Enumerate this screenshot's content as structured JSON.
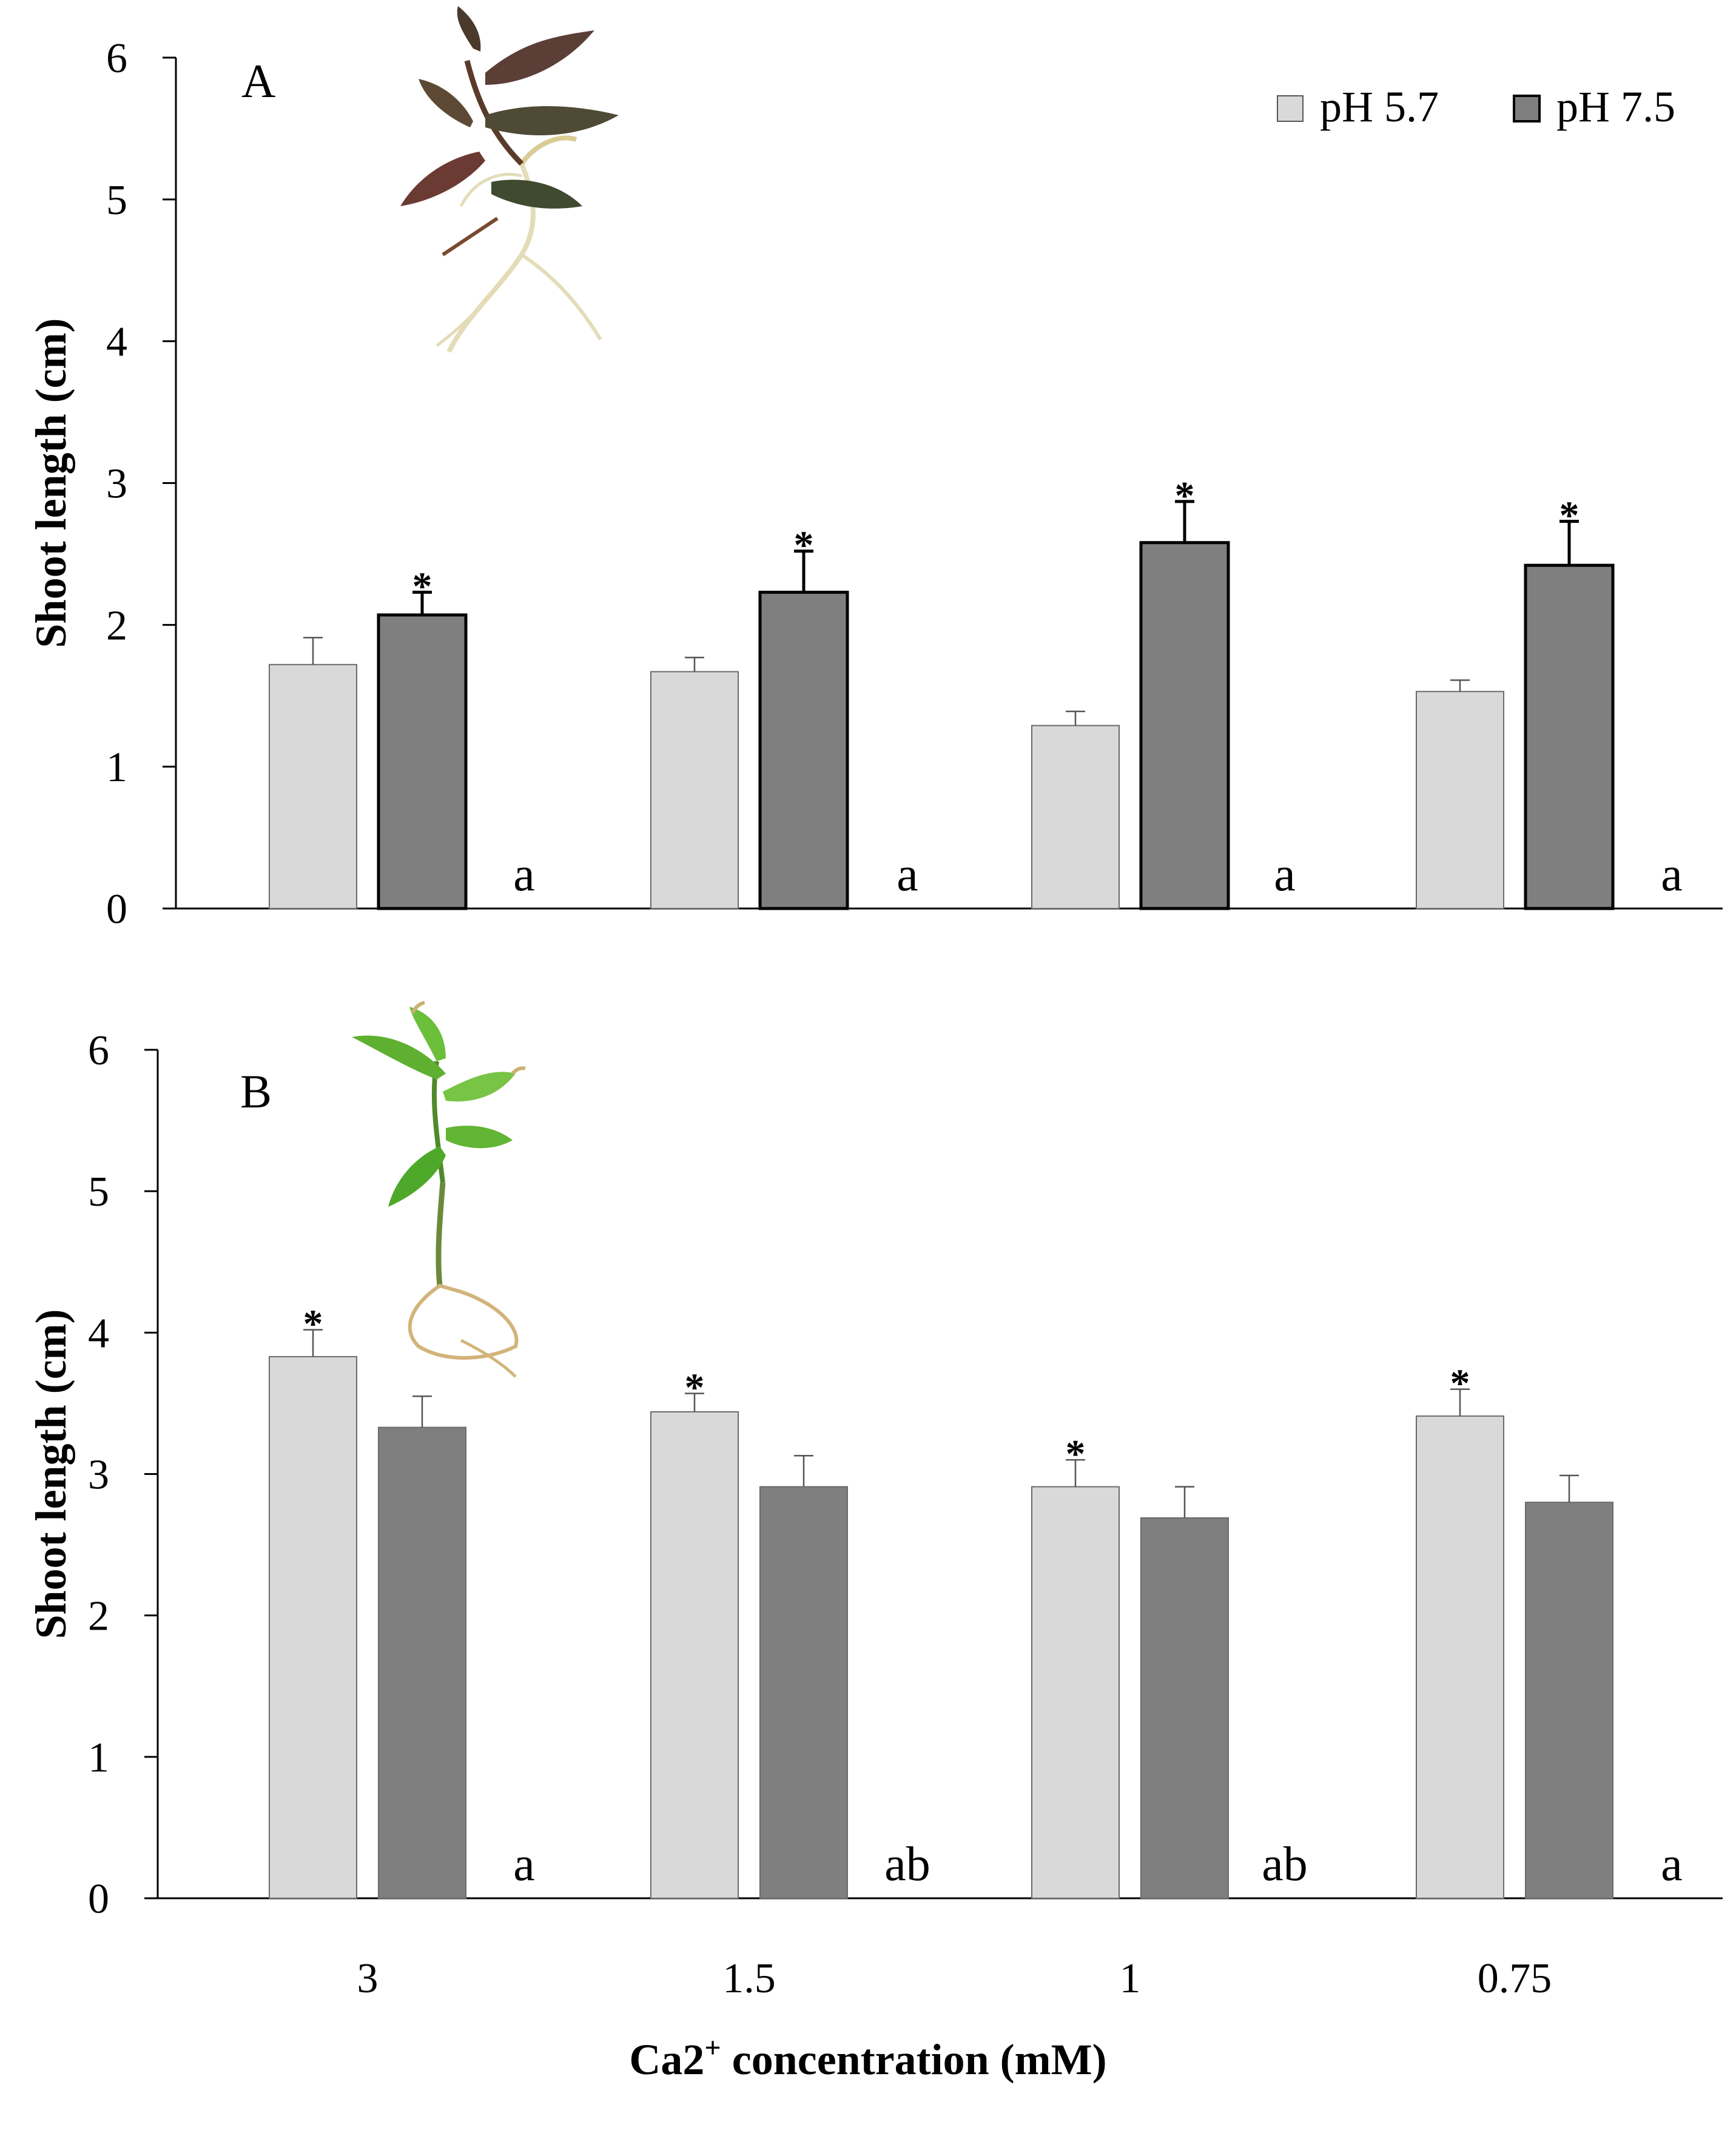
{
  "figure": {
    "xlabel": "Ca2",
    "xlabel_sup": "+",
    "xlabel_rest": " concentration (mM)",
    "legend": [
      {
        "label": "pH 5.7",
        "color": "#d9d9d9"
      },
      {
        "label": "pH 7.5",
        "color": "#7f7f7f"
      }
    ]
  },
  "chart_data": [
    {
      "type": "bar",
      "panel": "A",
      "title": "",
      "ylabel": "Shoot length (cm)",
      "ylim": [
        0,
        6
      ],
      "yticks": [
        "0",
        "1",
        "2",
        "3",
        "4",
        "5",
        "6"
      ],
      "categories": [
        "3",
        "1.5",
        "1",
        "0.75"
      ],
      "series": [
        {
          "name": "pH 5.7",
          "values": [
            1.72,
            1.67,
            1.29,
            1.53
          ],
          "errors": [
            0.19,
            0.1,
            0.1,
            0.08
          ],
          "color": "#d9d9d9"
        },
        {
          "name": "pH 7.5",
          "values": [
            2.07,
            2.23,
            2.58,
            2.42
          ],
          "errors": [
            0.16,
            0.29,
            0.29,
            0.31
          ],
          "color": "#7f7f7f"
        }
      ],
      "star_series": "pH 7.5",
      "stars": [
        "*",
        "*",
        "*",
        "*"
      ],
      "group_letters": [
        "a",
        "a",
        "a",
        "a"
      ],
      "thick_outline_series": "pH 7.5",
      "inset": "plant-with-dark-leaves"
    },
    {
      "type": "bar",
      "panel": "B",
      "title": "",
      "ylabel": "Shoot length (cm)",
      "ylim": [
        0,
        6
      ],
      "yticks": [
        "0",
        "1",
        "2",
        "3",
        "4",
        "5",
        "6"
      ],
      "categories": [
        "3",
        "1.5",
        "1",
        "0.75"
      ],
      "series": [
        {
          "name": "pH 5.7",
          "values": [
            3.83,
            3.44,
            2.91,
            3.41
          ],
          "errors": [
            0.19,
            0.13,
            0.19,
            0.19
          ],
          "color": "#d9d9d9"
        },
        {
          "name": "pH 7.5",
          "values": [
            3.33,
            2.91,
            2.69,
            2.8
          ],
          "errors": [
            0.22,
            0.22,
            0.22,
            0.19
          ],
          "color": "#7f7f7f"
        }
      ],
      "star_series": "pH 5.7",
      "stars": [
        "*",
        "*",
        "*",
        "*"
      ],
      "group_letters": [
        "a",
        "ab",
        "ab",
        "a"
      ],
      "inset": "plant-with-green-leaves"
    }
  ]
}
